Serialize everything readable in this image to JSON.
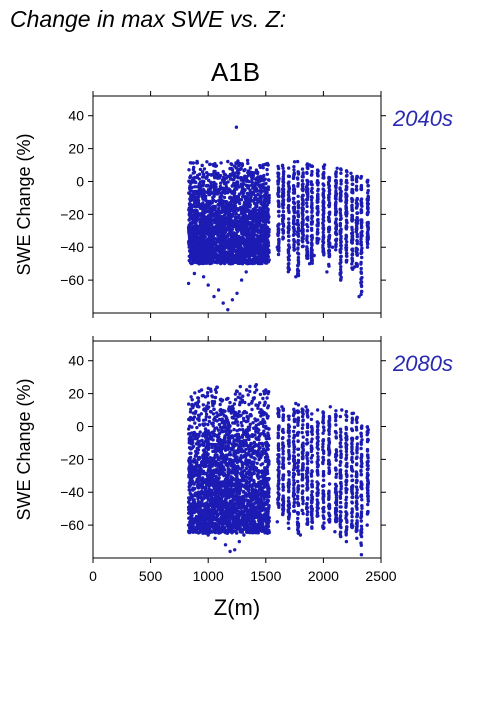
{
  "header": {
    "title": "Change in max SWE vs. Z:",
    "scenario": "A1B"
  },
  "colors": {
    "points": "#1c1cb4",
    "period_label": "#2a2ab0",
    "axis": "#000000"
  },
  "chart_data": [
    {
      "type": "scatter",
      "panel_label": "2040s",
      "xlabel": "",
      "ylabel": "SWE Change (%)",
      "xlim": [
        0,
        2500
      ],
      "ylim": [
        -80,
        52
      ],
      "x_ticks": [
        0,
        500,
        1000,
        1500,
        2000,
        2500
      ],
      "y_ticks": [
        -60,
        -40,
        -20,
        0,
        20,
        40
      ],
      "x_tick_labels_shown": false,
      "marker_color": "#1c1cb4",
      "dense_band": {
        "x_range": [
          830,
          1530
        ],
        "y_range": [
          -50,
          14
        ]
      },
      "points": [
        [
          1245,
          33
        ],
        [
          830,
          -62
        ],
        [
          880,
          -56
        ],
        [
          920,
          -50
        ],
        [
          960,
          -58
        ],
        [
          1000,
          -63
        ],
        [
          1050,
          -70
        ],
        [
          1090,
          -66
        ],
        [
          1130,
          -74
        ],
        [
          1170,
          -78
        ],
        [
          1210,
          -72
        ],
        [
          1250,
          -68
        ],
        [
          1290,
          -60
        ],
        [
          1330,
          -55
        ],
        [
          1380,
          -45
        ],
        [
          1420,
          -40
        ],
        [
          1470,
          -35
        ],
        [
          1520,
          -20
        ],
        [
          1520,
          10
        ],
        [
          1600,
          -40
        ],
        [
          1650,
          8
        ],
        [
          1700,
          -50
        ],
        [
          1750,
          12
        ],
        [
          1760,
          -58
        ],
        [
          1810,
          -30
        ],
        [
          1880,
          10
        ],
        [
          1880,
          -50
        ],
        [
          1920,
          -45
        ],
        [
          1960,
          -35
        ],
        [
          2010,
          10
        ],
        [
          2030,
          -55
        ],
        [
          2080,
          -40
        ],
        [
          2120,
          8
        ],
        [
          2150,
          -60
        ],
        [
          2200,
          -48
        ],
        [
          2240,
          5
        ],
        [
          2270,
          -52
        ],
        [
          2310,
          -70
        ],
        [
          2330,
          3
        ],
        [
          2380,
          -35
        ],
        [
          2380,
          0
        ]
      ],
      "columns": [
        {
          "x": 1610,
          "y_range": [
            -45,
            12
          ]
        },
        {
          "x": 1650,
          "y_range": [
            -35,
            10
          ]
        },
        {
          "x": 1700,
          "y_range": [
            -55,
            9
          ]
        },
        {
          "x": 1745,
          "y_range": [
            -42,
            11
          ]
        },
        {
          "x": 1780,
          "y_range": [
            -58,
            13
          ]
        },
        {
          "x": 1820,
          "y_range": [
            -40,
            10
          ]
        },
        {
          "x": 1860,
          "y_range": [
            -48,
            12
          ]
        },
        {
          "x": 1900,
          "y_range": [
            -50,
            11
          ]
        },
        {
          "x": 1950,
          "y_range": [
            -38,
            9
          ]
        },
        {
          "x": 2000,
          "y_range": [
            -45,
            10
          ]
        },
        {
          "x": 2050,
          "y_range": [
            -52,
            10
          ]
        },
        {
          "x": 2110,
          "y_range": [
            -42,
            8
          ]
        },
        {
          "x": 2150,
          "y_range": [
            -60,
            9
          ]
        },
        {
          "x": 2200,
          "y_range": [
            -50,
            8
          ]
        },
        {
          "x": 2250,
          "y_range": [
            -55,
            7
          ]
        },
        {
          "x": 2290,
          "y_range": [
            -52,
            6
          ]
        },
        {
          "x": 2330,
          "y_range": [
            -70,
            5
          ]
        },
        {
          "x": 2385,
          "y_range": [
            -40,
            2
          ]
        }
      ]
    },
    {
      "type": "scatter",
      "panel_label": "2080s",
      "xlabel": "Z(m)",
      "ylabel": "SWE Change (%)",
      "xlim": [
        0,
        2500
      ],
      "ylim": [
        -80,
        52
      ],
      "x_ticks": [
        0,
        500,
        1000,
        1500,
        2000,
        2500
      ],
      "y_ticks": [
        -60,
        -40,
        -20,
        0,
        20,
        40
      ],
      "x_tick_labels_shown": true,
      "marker_color": "#1c1cb4",
      "dense_band": {
        "x_range": [
          830,
          1530
        ],
        "y_range": [
          -65,
          26
        ]
      },
      "points": [
        [
          830,
          -60
        ],
        [
          900,
          -58
        ],
        [
          950,
          -64
        ],
        [
          1000,
          -66
        ],
        [
          1060,
          -68
        ],
        [
          1100,
          -62
        ],
        [
          1150,
          -72
        ],
        [
          1190,
          -76
        ],
        [
          1230,
          -75
        ],
        [
          1270,
          -70
        ],
        [
          1310,
          -66
        ],
        [
          1350,
          -62
        ],
        [
          1400,
          -58
        ],
        [
          1450,
          -50
        ],
        [
          1500,
          -40
        ],
        [
          1520,
          20
        ],
        [
          1600,
          -58
        ],
        [
          1640,
          12
        ],
        [
          1700,
          -62
        ],
        [
          1760,
          14
        ],
        [
          1800,
          -66
        ],
        [
          1850,
          12
        ],
        [
          1900,
          -58
        ],
        [
          1950,
          10
        ],
        [
          2000,
          -62
        ],
        [
          2060,
          12
        ],
        [
          2100,
          -64
        ],
        [
          2160,
          10
        ],
        [
          2200,
          -70
        ],
        [
          2260,
          8
        ],
        [
          2290,
          -68
        ],
        [
          2330,
          -78
        ],
        [
          2380,
          -60
        ],
        [
          2380,
          -5
        ]
      ],
      "columns": [
        {
          "x": 1610,
          "y_range": [
            -52,
            13
          ]
        },
        {
          "x": 1650,
          "y_range": [
            -55,
            12
          ]
        },
        {
          "x": 1700,
          "y_range": [
            -60,
            11
          ]
        },
        {
          "x": 1745,
          "y_range": [
            -52,
            12
          ]
        },
        {
          "x": 1780,
          "y_range": [
            -65,
            14
          ]
        },
        {
          "x": 1820,
          "y_range": [
            -55,
            12
          ]
        },
        {
          "x": 1860,
          "y_range": [
            -60,
            13
          ]
        },
        {
          "x": 1900,
          "y_range": [
            -62,
            12
          ]
        },
        {
          "x": 1950,
          "y_range": [
            -55,
            11
          ]
        },
        {
          "x": 2000,
          "y_range": [
            -62,
            12
          ]
        },
        {
          "x": 2050,
          "y_range": [
            -60,
            12
          ]
        },
        {
          "x": 2110,
          "y_range": [
            -58,
            10
          ]
        },
        {
          "x": 2150,
          "y_range": [
            -68,
            11
          ]
        },
        {
          "x": 2200,
          "y_range": [
            -66,
            10
          ]
        },
        {
          "x": 2250,
          "y_range": [
            -62,
            9
          ]
        },
        {
          "x": 2290,
          "y_range": [
            -65,
            8
          ]
        },
        {
          "x": 2330,
          "y_range": [
            -75,
            7
          ]
        },
        {
          "x": 2385,
          "y_range": [
            -55,
            2
          ]
        }
      ]
    }
  ]
}
